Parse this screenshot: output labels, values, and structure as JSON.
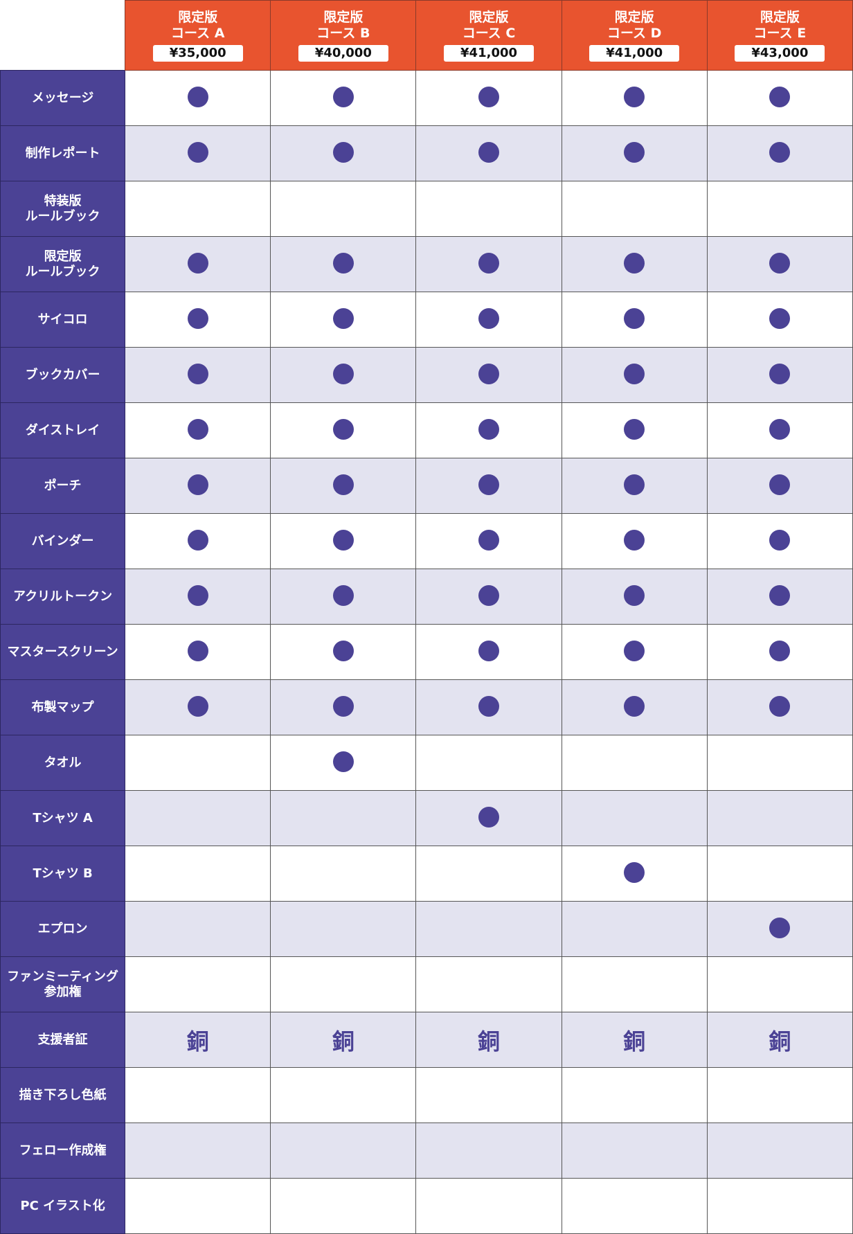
{
  "colors": {
    "header": "#E8542F",
    "label": "#4B4295",
    "stripe": "#E3E3F0",
    "mark": "#4B4295"
  },
  "courses": [
    {
      "line1": "限定版",
      "line2": "コース A",
      "price": "¥35,000"
    },
    {
      "line1": "限定版",
      "line2": "コース B",
      "price": "¥40,000"
    },
    {
      "line1": "限定版",
      "line2": "コース C",
      "price": "¥41,000"
    },
    {
      "line1": "限定版",
      "line2": "コース D",
      "price": "¥41,000"
    },
    {
      "line1": "限定版",
      "line2": "コース E",
      "price": "¥43,000"
    }
  ],
  "rows": [
    {
      "label": "メッセージ",
      "cells": [
        "●",
        "●",
        "●",
        "●",
        "●"
      ]
    },
    {
      "label": "制作レポート",
      "cells": [
        "●",
        "●",
        "●",
        "●",
        "●"
      ]
    },
    {
      "label": "特装版\nルールブック",
      "cells": [
        "",
        "",
        "",
        "",
        ""
      ]
    },
    {
      "label": "限定版\nルールブック",
      "cells": [
        "●",
        "●",
        "●",
        "●",
        "●"
      ]
    },
    {
      "label": "サイコロ",
      "cells": [
        "●",
        "●",
        "●",
        "●",
        "●"
      ]
    },
    {
      "label": "ブックカバー",
      "cells": [
        "●",
        "●",
        "●",
        "●",
        "●"
      ]
    },
    {
      "label": "ダイストレイ",
      "cells": [
        "●",
        "●",
        "●",
        "●",
        "●"
      ]
    },
    {
      "label": "ポーチ",
      "cells": [
        "●",
        "●",
        "●",
        "●",
        "●"
      ]
    },
    {
      "label": "バインダー",
      "cells": [
        "●",
        "●",
        "●",
        "●",
        "●"
      ]
    },
    {
      "label": "アクリルトークン",
      "cells": [
        "●",
        "●",
        "●",
        "●",
        "●"
      ]
    },
    {
      "label": "マスタースクリーン",
      "cells": [
        "●",
        "●",
        "●",
        "●",
        "●"
      ]
    },
    {
      "label": "布製マップ",
      "cells": [
        "●",
        "●",
        "●",
        "●",
        "●"
      ]
    },
    {
      "label": "タオル",
      "cells": [
        "",
        "●",
        "",
        "",
        ""
      ]
    },
    {
      "label": "Tシャツ A",
      "cells": [
        "",
        "",
        "●",
        "",
        ""
      ]
    },
    {
      "label": "Tシャツ B",
      "cells": [
        "",
        "",
        "",
        "●",
        ""
      ]
    },
    {
      "label": "エプロン",
      "cells": [
        "",
        "",
        "",
        "",
        "●"
      ]
    },
    {
      "label": "ファンミーティング\n参加権",
      "cells": [
        "",
        "",
        "",
        "",
        ""
      ]
    },
    {
      "label": "支援者証",
      "cells": [
        "銅",
        "銅",
        "銅",
        "銅",
        "銅"
      ]
    },
    {
      "label": "描き下ろし色紙",
      "cells": [
        "",
        "",
        "",
        "",
        ""
      ]
    },
    {
      "label": "フェロー作成権",
      "cells": [
        "",
        "",
        "",
        "",
        ""
      ]
    },
    {
      "label": "PC イラスト化",
      "cells": [
        "",
        "",
        "",
        "",
        ""
      ]
    }
  ]
}
